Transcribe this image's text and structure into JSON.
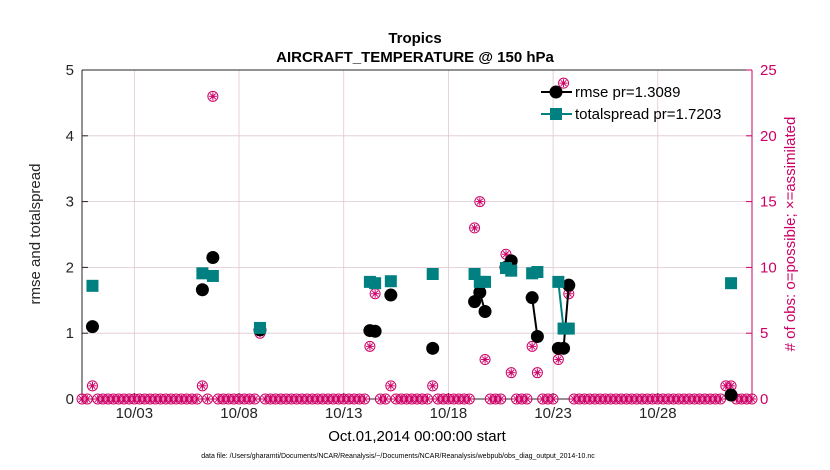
{
  "chart_data": {
    "type": "scatter",
    "title": "Tropics",
    "subtitle": "AIRCRAFT_TEMPERATURE @ 150 hPa",
    "xlabel": "Oct.01,2014 00:00:00 start",
    "ylabel_left": "rmse and totalspread",
    "ylabel_right": "# of obs: o=possible; ×=assimilated",
    "footnote": "data file: /Users/gharamti/Documents/NCAR/Reanalysis/~/Documents/NCAR/Reanalysis/webpub/obs_diag_output_2014-10.nc",
    "xlim": [
      0,
      32
    ],
    "ylim_left": [
      0,
      5
    ],
    "ylim_right": [
      0,
      25
    ],
    "x_ticks": [
      2.5,
      7.5,
      12.5,
      17.5,
      22.5,
      27.5
    ],
    "x_tick_labels": [
      "10/03",
      "10/08",
      "10/13",
      "10/18",
      "10/23",
      "10/28"
    ],
    "y_left_ticks": [
      0,
      1,
      2,
      3,
      4,
      5
    ],
    "y_right_ticks": [
      0,
      5,
      10,
      15,
      20,
      25
    ],
    "colors": {
      "rmse": "#000000",
      "spread": "#008080",
      "obs": "#cc0066",
      "grid": "#dfc7d2"
    },
    "series": [
      {
        "name": "rmse",
        "label": "rmse",
        "pr": "pr=1.3089",
        "points": [
          [
            0.5,
            1.1
          ],
          [
            5.75,
            1.66
          ],
          [
            6.25,
            2.15
          ],
          [
            8.5,
            1.05
          ],
          [
            13.75,
            1.04
          ],
          [
            14.0,
            1.03
          ],
          [
            14.75,
            1.58
          ],
          [
            16.75,
            0.77
          ],
          [
            18.75,
            1.48
          ],
          [
            19.0,
            1.62
          ],
          [
            19.25,
            1.33
          ],
          [
            20.25,
            2.0
          ],
          [
            20.5,
            2.1
          ],
          [
            21.5,
            1.54
          ],
          [
            21.75,
            0.95
          ],
          [
            22.75,
            0.77
          ],
          [
            23.0,
            0.77
          ],
          [
            23.25,
            1.73
          ],
          [
            31.0,
            0.06
          ]
        ],
        "segments": [
          [
            [
              19.0,
              1.62
            ],
            [
              19.25,
              1.33
            ]
          ],
          [
            [
              20.25,
              2.0
            ],
            [
              20.5,
              2.1
            ]
          ],
          [
            [
              21.5,
              1.54
            ],
            [
              21.75,
              0.95
            ]
          ],
          [
            [
              22.75,
              0.77
            ],
            [
              23.0,
              0.77
            ],
            [
              23.25,
              1.73
            ]
          ]
        ]
      },
      {
        "name": "totalspread",
        "label": "totalspread",
        "pr": "pr=1.7203",
        "points": [
          [
            0.5,
            1.72
          ],
          [
            5.75,
            1.91
          ],
          [
            6.25,
            1.87
          ],
          [
            8.5,
            1.08
          ],
          [
            13.75,
            1.78
          ],
          [
            14.0,
            1.76
          ],
          [
            14.75,
            1.79
          ],
          [
            16.75,
            1.9
          ],
          [
            18.75,
            1.9
          ],
          [
            19.0,
            1.78
          ],
          [
            19.25,
            1.78
          ],
          [
            20.25,
            1.99
          ],
          [
            20.5,
            1.95
          ],
          [
            21.5,
            1.91
          ],
          [
            21.75,
            1.93
          ],
          [
            22.75,
            1.78
          ],
          [
            23.0,
            1.07
          ],
          [
            23.25,
            1.07
          ],
          [
            31.0,
            1.76
          ]
        ],
        "segments": [
          [
            [
              19.0,
              1.78
            ],
            [
              19.25,
              1.78
            ]
          ],
          [
            [
              20.25,
              1.99
            ],
            [
              20.5,
              1.95
            ]
          ],
          [
            [
              21.5,
              1.91
            ],
            [
              21.75,
              1.93
            ]
          ],
          [
            [
              22.75,
              1.78
            ],
            [
              23.0,
              1.07
            ],
            [
              23.25,
              1.07
            ]
          ]
        ]
      }
    ],
    "obs_nonzero": [
      [
        0.5,
        1.0
      ],
      [
        5.75,
        1.0
      ],
      [
        6.25,
        23.0
      ],
      [
        8.5,
        5.0
      ],
      [
        13.75,
        4.0
      ],
      [
        14.0,
        8.0
      ],
      [
        14.75,
        1.0
      ],
      [
        16.75,
        1.0
      ],
      [
        18.75,
        13.0
      ],
      [
        19.0,
        15.0
      ],
      [
        19.25,
        3.0
      ],
      [
        20.25,
        11.0
      ],
      [
        20.5,
        2.0
      ],
      [
        21.5,
        4.0
      ],
      [
        21.75,
        2.0
      ],
      [
        22.75,
        3.0
      ],
      [
        23.0,
        24.0
      ],
      [
        23.25,
        8.0
      ],
      [
        30.75,
        1.0
      ],
      [
        31.0,
        1.0
      ]
    ],
    "obs_zero_step": 0.25,
    "legend_position": "top-right"
  }
}
